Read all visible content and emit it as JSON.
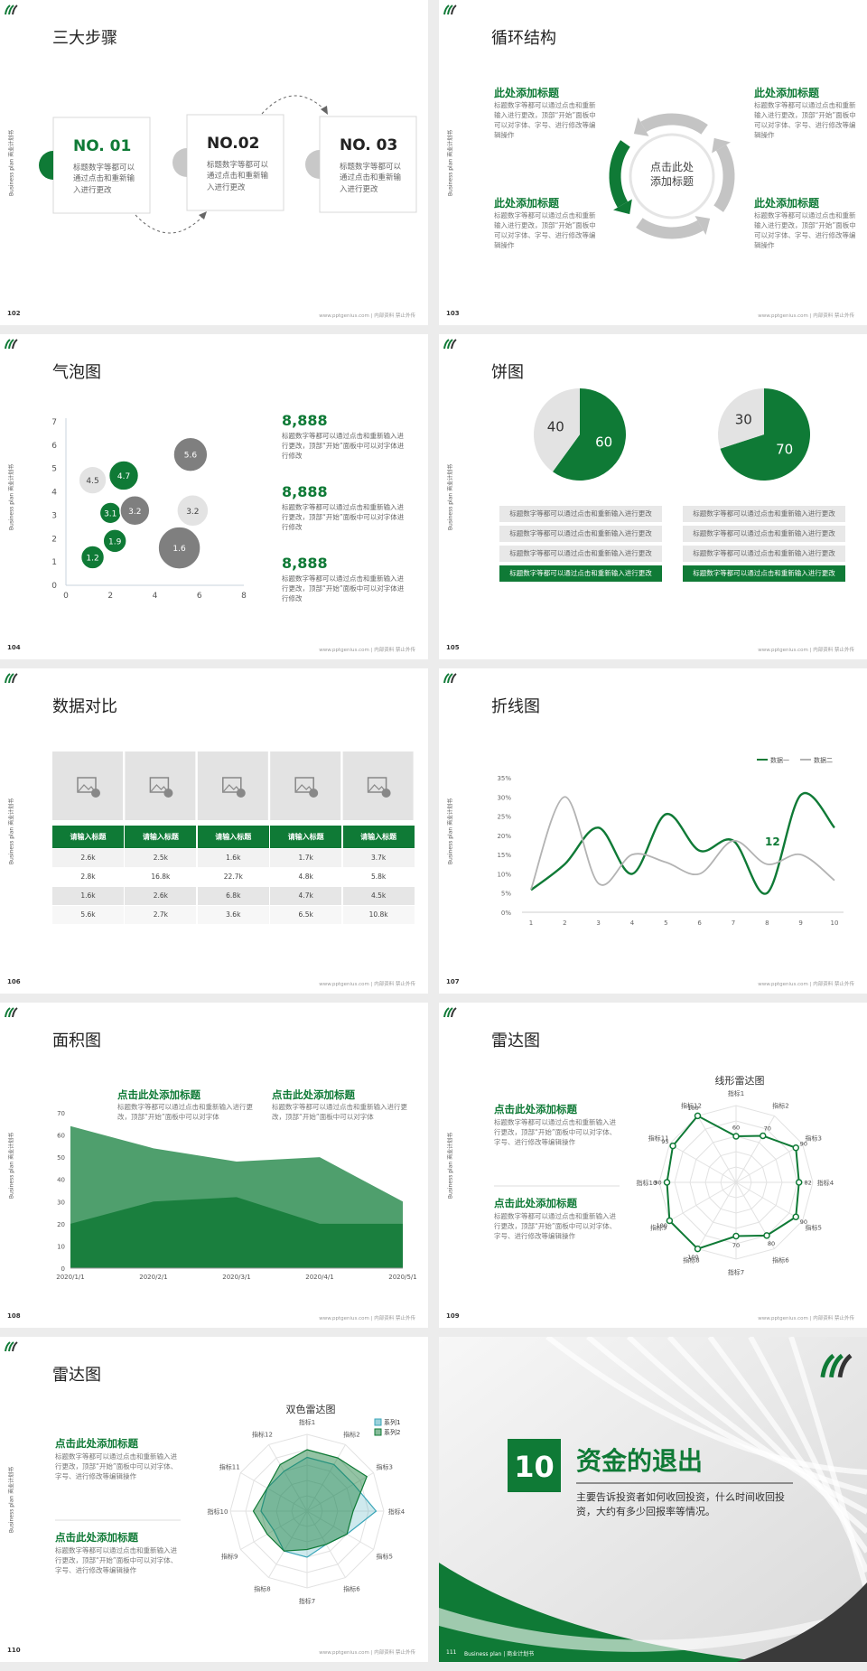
{
  "common": {
    "side_text": "Business plan 商业计划书",
    "footer": "www.pptgenius.com | 内部资料 禁止外传"
  },
  "slides": [
    {
      "page": "102",
      "title": "三大步骤",
      "steps": [
        {
          "label": "NO. 01",
          "text": "标题数字等都可以通过点击和重新输入进行更改"
        },
        {
          "label": "NO.02",
          "text": "标题数字等都可以通过点击和重新输入进行更改"
        },
        {
          "label": "NO. 03",
          "text": "标题数字等都可以通过点击和重新输入进行更改"
        }
      ]
    },
    {
      "page": "103",
      "title": "循环结构",
      "center": "点击此处添加标题",
      "blocks": [
        {
          "heading": "此处添加标题",
          "text": "标题数字等都可以通过点击和重新输入进行更改，顶部“开始”面板中可以对字体、字号、进行修改等编辑操作"
        },
        {
          "heading": "此处添加标题",
          "text": "标题数字等都可以通过点击和重新输入进行更改，顶部“开始”面板中可以对字体、字号、进行修改等编辑操作"
        },
        {
          "heading": "此处添加标题",
          "text": "标题数字等都可以通过点击和重新输入进行更改，顶部“开始”面板中可以对字体、字号、进行修改等编辑操作"
        },
        {
          "heading": "此处添加标题",
          "text": "标题数字等都可以通过点击和重新输入进行更改，顶部“开始”面板中可以对字体、字号、进行修改等编辑操作"
        }
      ]
    },
    {
      "page": "104",
      "title": "气泡图",
      "chart": {
        "type": "bubble",
        "x": [
          1.2,
          2.2,
          2.0,
          3.1,
          1.2,
          2.6,
          5.6,
          5.7,
          5.1
        ],
        "values": [
          1.2,
          1.9,
          3.1,
          3.2,
          4.5,
          4.7,
          5.6,
          3.2,
          1.6
        ],
        "sizes": [
          3.7,
          3.7,
          3.4,
          4.7,
          4.4,
          4.7,
          5.4,
          5.0,
          6.7
        ],
        "colors": [
          "#0f7a36",
          "#0f7a36",
          "#0f7a36",
          "#7f7f7f",
          "#e3e3e3",
          "#0f7a36",
          "#7f7f7f",
          "#e3e3e3",
          "#7f7f7f"
        ],
        "xlim": [
          0,
          8
        ],
        "xticks": [
          0,
          2,
          4,
          6,
          8
        ],
        "ylim": [
          0,
          7
        ],
        "yticks": [
          0,
          1,
          2,
          3,
          4,
          5,
          6,
          7
        ]
      },
      "stats": [
        {
          "value": "8,888",
          "text": "标题数字等都可以通过点击和重新输入进行更改，顶部“开始”面板中可以对字体进行修改"
        },
        {
          "value": "8,888",
          "text": "标题数字等都可以通过点击和重新输入进行更改，顶部“开始”面板中可以对字体进行修改"
        },
        {
          "value": "8,888",
          "text": "标题数字等都可以通过点击和重新输入进行更改，顶部“开始”面板中可以对字体进行修改"
        }
      ]
    },
    {
      "page": "105",
      "title": "饼图",
      "pies": [
        {
          "type": "pie",
          "values": [
            60,
            40
          ],
          "colors": [
            "#0f7a36",
            "#e3e3e3"
          ]
        },
        {
          "type": "pie",
          "values": [
            70,
            30
          ],
          "colors": [
            "#0f7a36",
            "#e3e3e3"
          ]
        }
      ],
      "rows": [
        [
          "标题数字等都可以通过点击和重新输入进行更改",
          "标题数字等都可以通过点击和重新输入进行更改",
          "标题数字等都可以通过点击和重新输入进行更改",
          "标题数字等都可以通过点击和重新输入进行更改"
        ],
        [
          "标题数字等都可以通过点击和重新输入进行更改",
          "标题数字等都可以通过点击和重新输入进行更改",
          "标题数字等都可以通过点击和重新输入进行更改",
          "标题数字等都可以通过点击和重新输入进行更改"
        ]
      ]
    },
    {
      "page": "106",
      "title": "数据对比",
      "table": {
        "header": [
          "请输入标题",
          "请输入标题",
          "请输入标题",
          "请输入标题",
          "请输入标题"
        ],
        "rows": [
          [
            "2.6k",
            "2.5k",
            "1.6k",
            "1.7k",
            "3.7k"
          ],
          [
            "2.8k",
            "16.8k",
            "22.7k",
            "4.8k",
            "5.8k"
          ],
          [
            "1.6k",
            "2.6k",
            "6.8k",
            "4.7k",
            "4.5k"
          ],
          [
            "5.6k",
            "2.7k",
            "3.6k",
            "6.5k",
            "10.8k"
          ]
        ]
      }
    },
    {
      "page": "107",
      "title": "折线图",
      "chart": {
        "type": "line",
        "x": [
          1,
          2,
          3,
          4,
          5,
          6,
          7,
          8,
          9,
          10
        ],
        "xlim": [
          1,
          10
        ],
        "xticks": [
          1,
          2,
          3,
          4,
          5,
          6,
          7,
          8,
          9,
          10
        ],
        "ylim": [
          0,
          35
        ],
        "yticks": [
          {
            "value": 0,
            "label": "0%"
          },
          {
            "value": 5,
            "label": "5%"
          },
          {
            "value": 10,
            "label": "10%"
          },
          {
            "value": 15,
            "label": "15%"
          },
          {
            "value": 20,
            "label": "20%"
          },
          {
            "value": 25,
            "label": "25%"
          },
          {
            "value": 30,
            "label": "30%"
          },
          {
            "value": 35,
            "label": "35%"
          }
        ],
        "grid": false,
        "annotation": "12",
        "series": [
          {
            "name": "数据一",
            "color": "#0f7a36",
            "values": [
              5.8,
              12.5,
              22,
              10,
              25.5,
              16,
              18.6,
              5,
              30.5,
              22
            ]
          },
          {
            "name": "数据二",
            "color": "#b3b3b3",
            "values": [
              6,
              30,
              7.5,
              15,
              13,
              10,
              18.6,
              12.5,
              15,
              8.3
            ]
          }
        ]
      }
    },
    {
      "page": "108",
      "title": "面积图",
      "blocks": [
        {
          "heading": "点击此处添加标题",
          "text": "标题数字等都可以通过点击和重新输入进行更改，顶部“开始”面板中可以对字体"
        },
        {
          "heading": "点击此处添加标题",
          "text": "标题数字等都可以通过点击和重新输入进行更改，顶部“开始”面板中可以对字体"
        }
      ],
      "chart": {
        "type": "area",
        "categories": [
          "2020/1/1",
          "2020/2/1",
          "2020/3/1",
          "2020/4/1",
          "2020/5/1"
        ],
        "ylim": [
          0,
          70
        ],
        "yticks": [
          0,
          10,
          20,
          30,
          40,
          50,
          60,
          70
        ],
        "series": [
          {
            "color": "#4f9f6d",
            "values": [
              64,
              54,
              48,
              50,
              30
            ]
          },
          {
            "color": "#1a7f3e",
            "values": [
              20,
              30,
              32,
              20,
              20
            ]
          }
        ]
      }
    },
    {
      "page": "109",
      "title": "雷达图",
      "blocks": [
        {
          "heading": "点击此处添加标题",
          "text": "标题数字等都可以通过点击和重新输入进行更改，顶部“开始”面板中可以对字体、字号、进行修改等编辑操作"
        },
        {
          "heading": "点击此处添加标题",
          "text": "标题数字等都可以通过点击和重新输入进行更改，顶部“开始”面板中可以对字体、字号、进行修改等编辑操作"
        }
      ],
      "chart": {
        "type": "radar",
        "title": "线形雷达图",
        "categories": [
          "指标1",
          "指标2",
          "指标3",
          "指标4",
          "指标5",
          "指标6",
          "指标7",
          "指标8",
          "指标9",
          "指标10",
          "指标11",
          "指标12"
        ],
        "rlim": [
          0,
          100
        ],
        "rticks": [
          20,
          40,
          60,
          80,
          100
        ],
        "series": [
          {
            "color": "#0f7a36",
            "values": [
              60,
              70,
              90,
              82,
              90,
              80,
              70,
              100,
              100,
              90,
              95,
              100
            ]
          }
        ]
      }
    },
    {
      "page": "110",
      "title": "雷达图",
      "blocks": [
        {
          "heading": "点击此处添加标题",
          "text": "标题数字等都可以通过点击和重新输入进行更改，顶部“开始”面板中可以对字体、字号、进行修改等编辑操作"
        },
        {
          "heading": "点击此处添加标题",
          "text": "标题数字等都可以通过点击和重新输入进行更改，顶部“开始”面板中可以对字体、字号、进行修改等编辑操作"
        }
      ],
      "chart": {
        "type": "radar",
        "title": "双色雷达图",
        "categories": [
          "指标1",
          "指标2",
          "指标3",
          "指标4",
          "指标5",
          "指标6",
          "指标7",
          "指标8",
          "指标9",
          "指标10",
          "指标11",
          "指标12"
        ],
        "rlim": [
          0,
          5
        ],
        "rticks": [
          1,
          2,
          3,
          4,
          5
        ],
        "series": [
          {
            "name": "系列1",
            "color": "#3aa6b9",
            "values": [
              3.5,
              3.5,
              3.5,
              4.5,
              3,
              2.5,
              3,
              3,
              2.5,
              3,
              3,
              3
            ]
          },
          {
            "name": "系列2",
            "color": "#0f7a36",
            "values": [
              4,
              4,
              4.5,
              3,
              3,
              2.5,
              2.5,
              3,
              3,
              3.5,
              3,
              3.5
            ]
          }
        ]
      }
    },
    {
      "page": "111",
      "number": "10",
      "title": "资金的退出",
      "text": "主要告诉投资者如何收回投资，什么时间收回投资，大约有多少回报率等情况。",
      "footer": "Business plan | 商业计划书"
    }
  ]
}
